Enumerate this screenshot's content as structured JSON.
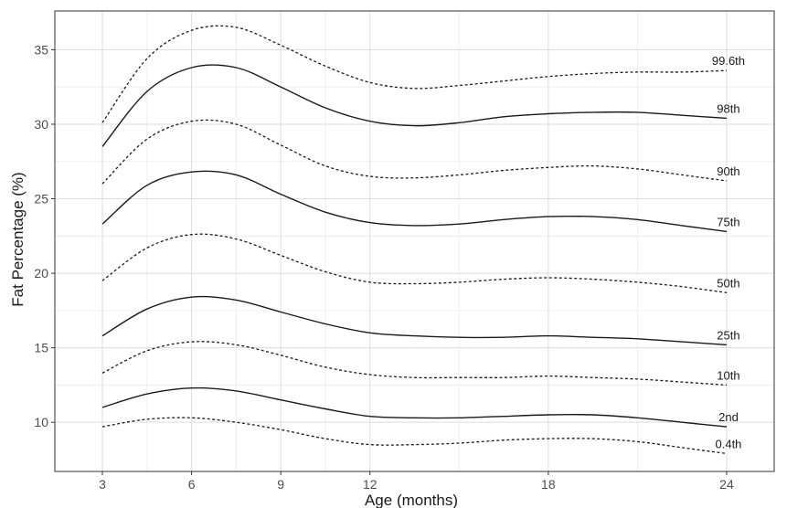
{
  "chart_data": {
    "type": "line",
    "title": "",
    "xlabel": "Age (months)",
    "ylabel": "Fat Percentage (%)",
    "xlim": [
      1.4,
      25.6
    ],
    "ylim": [
      6.7,
      37.6
    ],
    "x_ticks": [
      3,
      6,
      9,
      12,
      18,
      24
    ],
    "y_ticks": [
      10,
      15,
      20,
      25,
      30,
      35
    ],
    "grid": true,
    "legend": "none",
    "x": [
      3,
      4.5,
      6,
      7.5,
      9,
      10.5,
      12,
      13.5,
      15,
      16.5,
      18,
      19.5,
      21,
      22.5,
      24
    ],
    "series": [
      {
        "name": "99.6th",
        "style": "dashed",
        "values": [
          30.1,
          34.4,
          36.3,
          36.5,
          35.3,
          33.9,
          32.8,
          32.4,
          32.6,
          32.9,
          33.2,
          33.4,
          33.5,
          33.5,
          33.6
        ]
      },
      {
        "name": "98th",
        "style": "solid",
        "values": [
          28.5,
          32.2,
          33.8,
          33.8,
          32.5,
          31.1,
          30.2,
          29.9,
          30.1,
          30.5,
          30.7,
          30.8,
          30.8,
          30.6,
          30.4
        ]
      },
      {
        "name": "90th",
        "style": "dashed",
        "values": [
          26.0,
          29.0,
          30.2,
          30.0,
          28.6,
          27.2,
          26.5,
          26.4,
          26.6,
          26.9,
          27.1,
          27.2,
          27.0,
          26.6,
          26.2
        ]
      },
      {
        "name": "75th",
        "style": "solid",
        "values": [
          23.3,
          25.9,
          26.8,
          26.6,
          25.3,
          24.1,
          23.4,
          23.2,
          23.3,
          23.6,
          23.8,
          23.8,
          23.6,
          23.2,
          22.8
        ]
      },
      {
        "name": "50th",
        "style": "dashed",
        "values": [
          19.5,
          21.7,
          22.6,
          22.3,
          21.2,
          20.1,
          19.4,
          19.3,
          19.4,
          19.6,
          19.7,
          19.6,
          19.4,
          19.1,
          18.7
        ]
      },
      {
        "name": "25th",
        "style": "solid",
        "values": [
          15.8,
          17.6,
          18.4,
          18.2,
          17.4,
          16.6,
          16.0,
          15.8,
          15.7,
          15.7,
          15.8,
          15.7,
          15.6,
          15.4,
          15.2
        ]
      },
      {
        "name": "10th",
        "style": "dashed",
        "values": [
          13.3,
          14.8,
          15.4,
          15.2,
          14.5,
          13.7,
          13.2,
          13.0,
          13.0,
          13.0,
          13.1,
          13.0,
          12.9,
          12.7,
          12.5
        ]
      },
      {
        "name": "2nd",
        "style": "solid",
        "values": [
          11.0,
          11.9,
          12.3,
          12.1,
          11.5,
          10.9,
          10.4,
          10.3,
          10.3,
          10.4,
          10.5,
          10.5,
          10.3,
          10.0,
          9.7
        ]
      },
      {
        "name": "0.4th",
        "style": "dashed",
        "values": [
          9.7,
          10.2,
          10.3,
          10.0,
          9.5,
          8.9,
          8.5,
          8.5,
          8.6,
          8.8,
          8.9,
          8.9,
          8.7,
          8.3,
          7.9
        ]
      }
    ]
  }
}
